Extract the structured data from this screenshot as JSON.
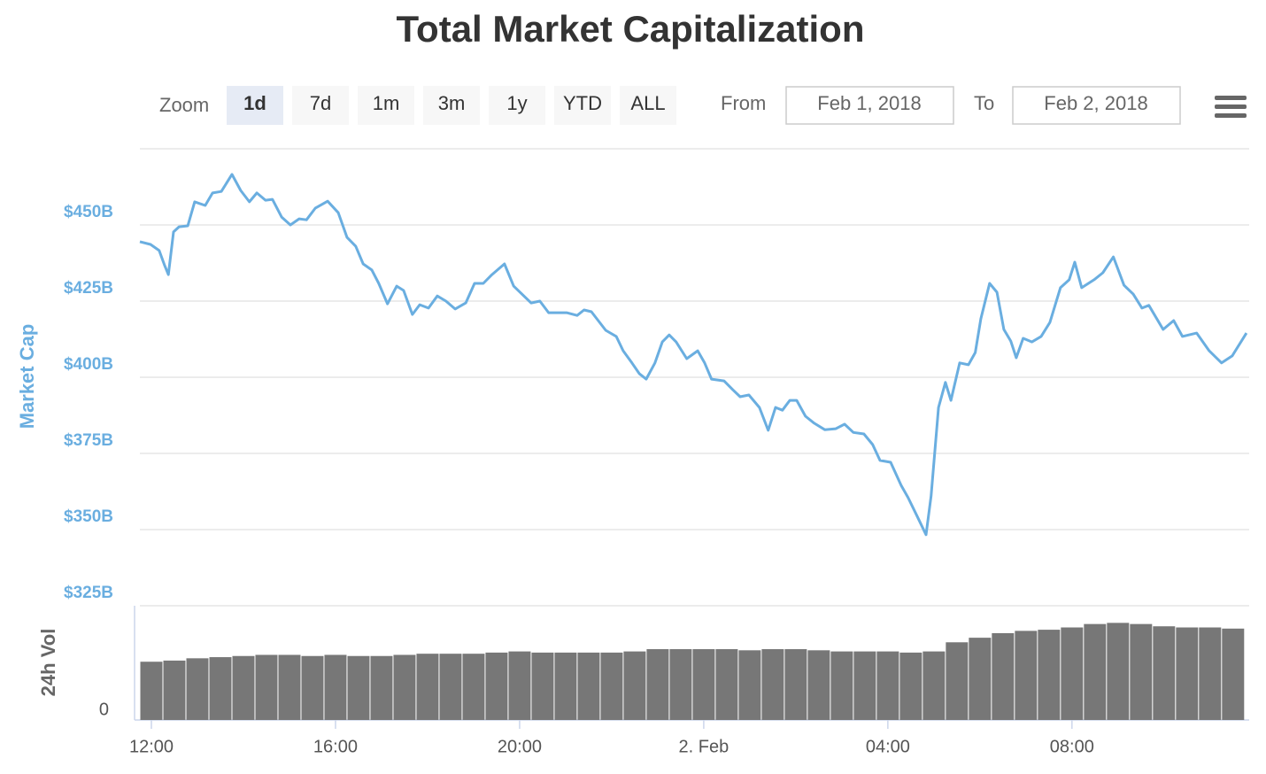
{
  "range_selector": {
    "zoom_label": "Zoom",
    "buttons": [
      "1d",
      "7d",
      "1m",
      "3m",
      "1y",
      "YTD",
      "ALL"
    ],
    "selected": 0,
    "from_label": "From",
    "from": "Feb 1, 2018",
    "to_label": "To",
    "to": "Feb 2, 2018"
  },
  "chart_data": [
    {
      "type": "line",
      "title": "Total Market Capitalization",
      "y_label": "Market Cap",
      "color": "#6aaee0",
      "xlim": [
        11.75,
        35.85
      ],
      "ylim": [
        325,
        475
      ],
      "yticks": [
        {
          "value": 325,
          "label": "$325B"
        },
        {
          "value": 350,
          "label": "$350B"
        },
        {
          "value": 375,
          "label": "$375B"
        },
        {
          "value": 400,
          "label": "$400B"
        },
        {
          "value": 425,
          "label": "$425B"
        },
        {
          "value": 450,
          "label": "$450B"
        }
      ],
      "grid": true,
      "x": [
        11.75,
        11.98,
        12.17,
        12.29,
        12.37,
        12.48,
        12.6,
        12.79,
        12.94,
        13.17,
        13.33,
        13.52,
        13.75,
        13.94,
        14.13,
        14.29,
        14.48,
        14.63,
        14.83,
        15.02,
        15.21,
        15.37,
        15.56,
        15.83,
        16.06,
        16.25,
        16.44,
        16.6,
        16.79,
        16.94,
        17.13,
        17.33,
        17.48,
        17.67,
        17.83,
        18.02,
        18.21,
        18.4,
        18.6,
        18.83,
        19.02,
        19.21,
        19.4,
        19.67,
        19.87,
        20.25,
        20.44,
        20.63,
        21.02,
        21.25,
        21.4,
        21.56,
        21.87,
        22.1,
        22.25,
        22.44,
        22.6,
        22.75,
        22.94,
        23.1,
        23.25,
        23.4,
        23.63,
        23.87,
        24.02,
        24.17,
        24.44,
        24.63,
        24.79,
        24.98,
        25.21,
        25.4,
        25.56,
        25.71,
        25.87,
        26.02,
        26.21,
        26.4,
        26.63,
        26.87,
        27.06,
        27.25,
        27.48,
        27.67,
        27.83,
        28.06,
        28.29,
        28.44,
        28.63,
        28.83,
        28.94,
        29.1,
        29.25,
        29.37,
        29.56,
        29.75,
        29.9,
        30.02,
        30.21,
        30.37,
        30.52,
        30.67,
        30.79,
        30.94,
        31.13,
        31.33,
        31.52,
        31.75,
        31.94,
        32.06,
        32.21,
        32.48,
        32.67,
        32.9,
        33.13,
        33.33,
        33.52,
        33.67,
        33.98,
        34.21,
        34.4,
        34.71,
        34.98,
        35.25,
        35.48,
        35.79
      ],
      "values": [
        444.5,
        443.6,
        441.6,
        436.6,
        433.7,
        447.7,
        449.4,
        449.7,
        457.6,
        456.4,
        460.5,
        461,
        466.6,
        461.3,
        457.6,
        460.5,
        458.1,
        458.4,
        452.6,
        450,
        452,
        451.7,
        455.5,
        457.8,
        454,
        445.9,
        443,
        437.2,
        435.2,
        430.8,
        424.1,
        429.9,
        428.5,
        420.6,
        423.8,
        422.7,
        426.7,
        425,
        422.4,
        424.4,
        430.8,
        430.8,
        433.7,
        437.2,
        429.9,
        424.4,
        425,
        421.2,
        421.2,
        420.3,
        422.1,
        421.5,
        415.4,
        413.4,
        408.7,
        404.7,
        401.2,
        399.4,
        404.7,
        411.6,
        413.9,
        411.6,
        406.1,
        408.7,
        404.7,
        399.4,
        398.8,
        395.9,
        393.6,
        394.2,
        390.1,
        382.6,
        390.1,
        389.2,
        392.4,
        392.4,
        387.2,
        384.9,
        382.8,
        383.1,
        384.6,
        381.9,
        381.4,
        377.9,
        372.7,
        372.1,
        364.5,
        360.5,
        354.6,
        348.3,
        361,
        390.1,
        398.3,
        392.4,
        404.7,
        404.1,
        408.1,
        419.2,
        430.8,
        427.9,
        415.7,
        411.9,
        406.4,
        412.8,
        411.6,
        413.4,
        418,
        429.4,
        432,
        437.8,
        429.4,
        432,
        434.3,
        439.5,
        430.2,
        427.3,
        422.7,
        423.6,
        415.7,
        418.6,
        413.4,
        414.5,
        408.7,
        404.7,
        407,
        414.5
      ]
    },
    {
      "type": "bar",
      "y_label": "24h Vol",
      "color": "#777777",
      "bar_width": 0.5,
      "xlim": [
        11.75,
        35.85
      ],
      "ylim": [
        0,
        100
      ],
      "yticks": [
        0
      ],
      "xticks": [
        {
          "value": 12,
          "label": "12:00"
        },
        {
          "value": 16,
          "label": "16:00"
        },
        {
          "value": 20,
          "label": "20:00"
        },
        {
          "value": 24,
          "label": "2. Feb"
        },
        {
          "value": 28,
          "label": "04:00"
        },
        {
          "value": 32,
          "label": "08:00"
        }
      ],
      "x": [
        12,
        12.5,
        13,
        13.5,
        14,
        14.5,
        15,
        15.5,
        16,
        16.5,
        17,
        17.5,
        18,
        18.5,
        19,
        19.5,
        20,
        20.5,
        21,
        21.5,
        22,
        22.5,
        23,
        23.5,
        24,
        24.5,
        25,
        25.5,
        26,
        26.5,
        27,
        27.5,
        28,
        28.5,
        29,
        29.5,
        30,
        30.5,
        31,
        31.5,
        32,
        32.5,
        33,
        33.5,
        34,
        34.5,
        35,
        35.5
      ],
      "values": [
        51,
        52,
        54,
        55,
        56,
        57,
        57,
        56,
        57,
        56,
        56,
        57,
        58,
        58,
        58,
        59,
        60,
        59,
        59,
        59,
        59,
        60,
        62,
        62,
        62,
        62,
        61,
        62,
        62,
        61,
        60,
        60,
        60,
        59,
        60,
        68,
        72,
        76,
        78,
        79,
        81,
        84,
        85,
        84,
        82,
        81,
        81,
        80
      ]
    }
  ]
}
